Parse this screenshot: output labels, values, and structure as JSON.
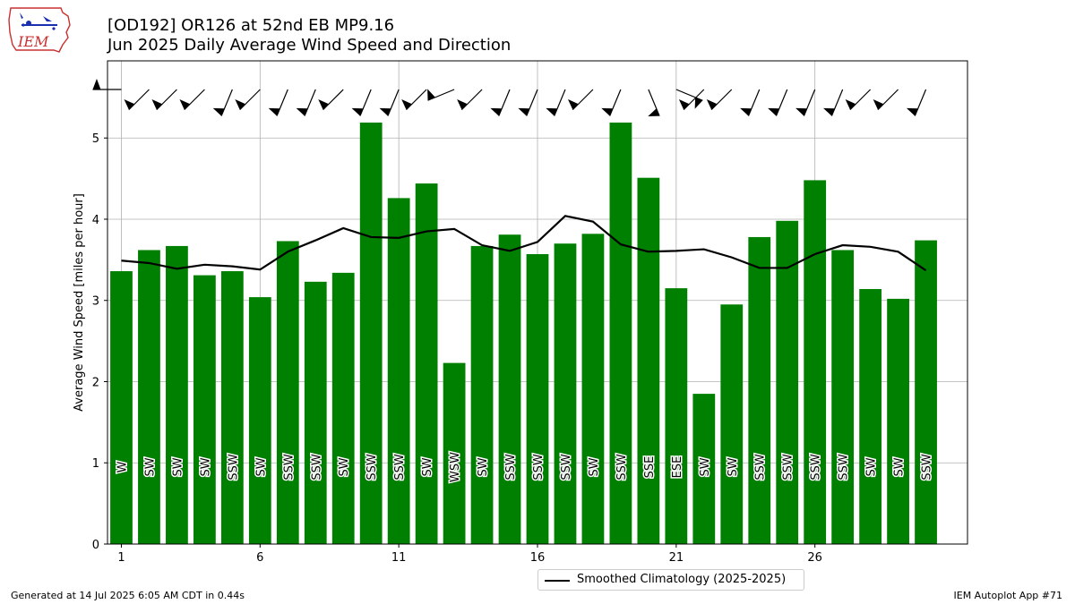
{
  "header": {
    "title_line1": "[OD192] OR126 at 52nd EB MP9.16",
    "title_line2": "Jun 2025 Daily Average Wind Speed and Direction"
  },
  "logo": {
    "text": "IEM",
    "icon": "iowa-state-outline-logo"
  },
  "footer": {
    "generated": "Generated at 14 Jul 2025 6:05 AM CDT in 0.44s",
    "app": "IEM Autoplot App #71"
  },
  "legend": {
    "label": "Smoothed Climatology (2025-2025)"
  },
  "colors": {
    "bars": "#008000",
    "climatology": "#000000",
    "grid": "#b0b0b0"
  },
  "chart_data": {
    "type": "bar",
    "ylabel": "Average Wind Speed [miles per hour]",
    "xlabel": "",
    "ylim": [
      0,
      5.95
    ],
    "xlim": [
      0.5,
      31.5
    ],
    "xticks": [
      1,
      6,
      11,
      16,
      21,
      26
    ],
    "yticks": [
      0,
      1,
      2,
      3,
      4,
      5
    ],
    "grid": true,
    "legend_position": "bottom-center",
    "days": [
      1,
      2,
      3,
      4,
      5,
      6,
      7,
      8,
      9,
      10,
      11,
      12,
      13,
      14,
      15,
      16,
      17,
      18,
      19,
      20,
      21,
      22,
      23,
      24,
      25,
      26,
      27,
      28,
      29,
      30
    ],
    "series": [
      {
        "type": "bar",
        "values": [
          3.36,
          3.62,
          3.67,
          3.31,
          3.36,
          3.04,
          3.73,
          3.23,
          3.34,
          5.19,
          4.26,
          4.44,
          2.23,
          3.67,
          3.81,
          3.57,
          3.7,
          3.82,
          5.19,
          4.51,
          3.15,
          1.85,
          2.95,
          3.78,
          3.98,
          4.48,
          3.62,
          3.14,
          3.02,
          3.74
        ],
        "directions": [
          "W",
          "SW",
          "SW",
          "SW",
          "SSW",
          "SW",
          "SSW",
          "SSW",
          "SW",
          "SSW",
          "SSW",
          "SW",
          "WSW",
          "SW",
          "SSW",
          "SSW",
          "SSW",
          "SW",
          "SSW",
          "SSE",
          "ESE",
          "SW",
          "SW",
          "SSW",
          "SSW",
          "SSW",
          "SSW",
          "SW",
          "SW",
          "SSW"
        ],
        "direction_degrees": [
          270,
          225,
          225,
          225,
          202.5,
          225,
          202.5,
          202.5,
          225,
          202.5,
          202.5,
          225,
          247.5,
          225,
          202.5,
          202.5,
          202.5,
          225,
          202.5,
          157.5,
          112.5,
          225,
          225,
          202.5,
          202.5,
          202.5,
          202.5,
          225,
          225,
          202.5
        ]
      },
      {
        "type": "line",
        "name": "Smoothed Climatology (2025-2025)",
        "values": [
          3.49,
          3.46,
          3.39,
          3.44,
          3.42,
          3.38,
          3.6,
          3.74,
          3.89,
          3.78,
          3.77,
          3.85,
          3.88,
          3.68,
          3.61,
          3.72,
          4.04,
          3.97,
          3.69,
          3.6,
          3.61,
          3.63,
          3.53,
          3.4,
          3.4,
          3.57,
          3.68,
          3.66,
          3.6,
          3.37
        ]
      }
    ]
  }
}
